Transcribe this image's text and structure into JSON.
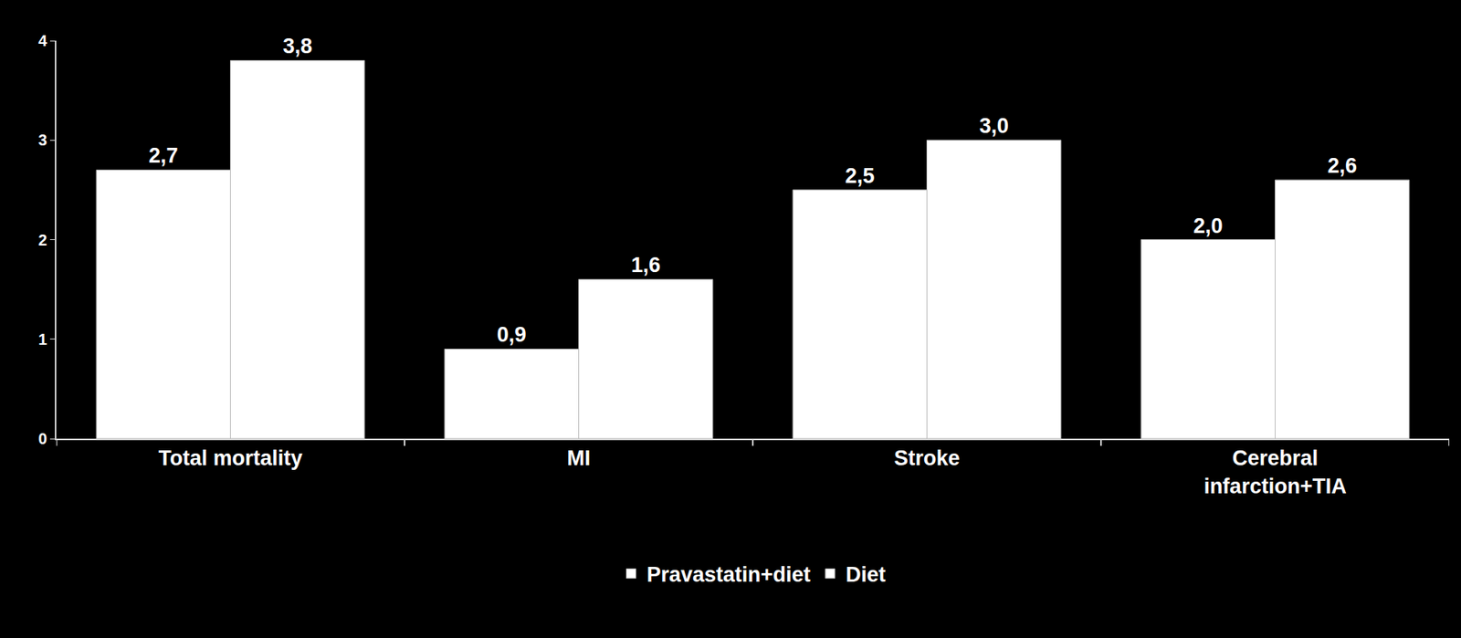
{
  "chart_data": {
    "type": "bar",
    "categories": [
      "Total mortality",
      "MI",
      "Stroke",
      "Cerebral infarction+TIA"
    ],
    "series": [
      {
        "name": "Pravastatin+diet",
        "color": "#ffffff",
        "values": [
          2.7,
          0.9,
          2.5,
          2.0
        ],
        "value_labels": [
          "2,7",
          "0,9",
          "2,5",
          "2,0"
        ]
      },
      {
        "name": "Diet",
        "color": "#ffffff",
        "values": [
          3.8,
          1.6,
          3.0,
          2.6
        ],
        "value_labels": [
          "3,8",
          "1,6",
          "3,0",
          "2,6"
        ]
      }
    ],
    "ylim": [
      0,
      4
    ],
    "yticks": [
      0,
      1,
      2,
      3,
      4
    ],
    "grid": false,
    "data_labels": true,
    "legend": "bottom"
  }
}
